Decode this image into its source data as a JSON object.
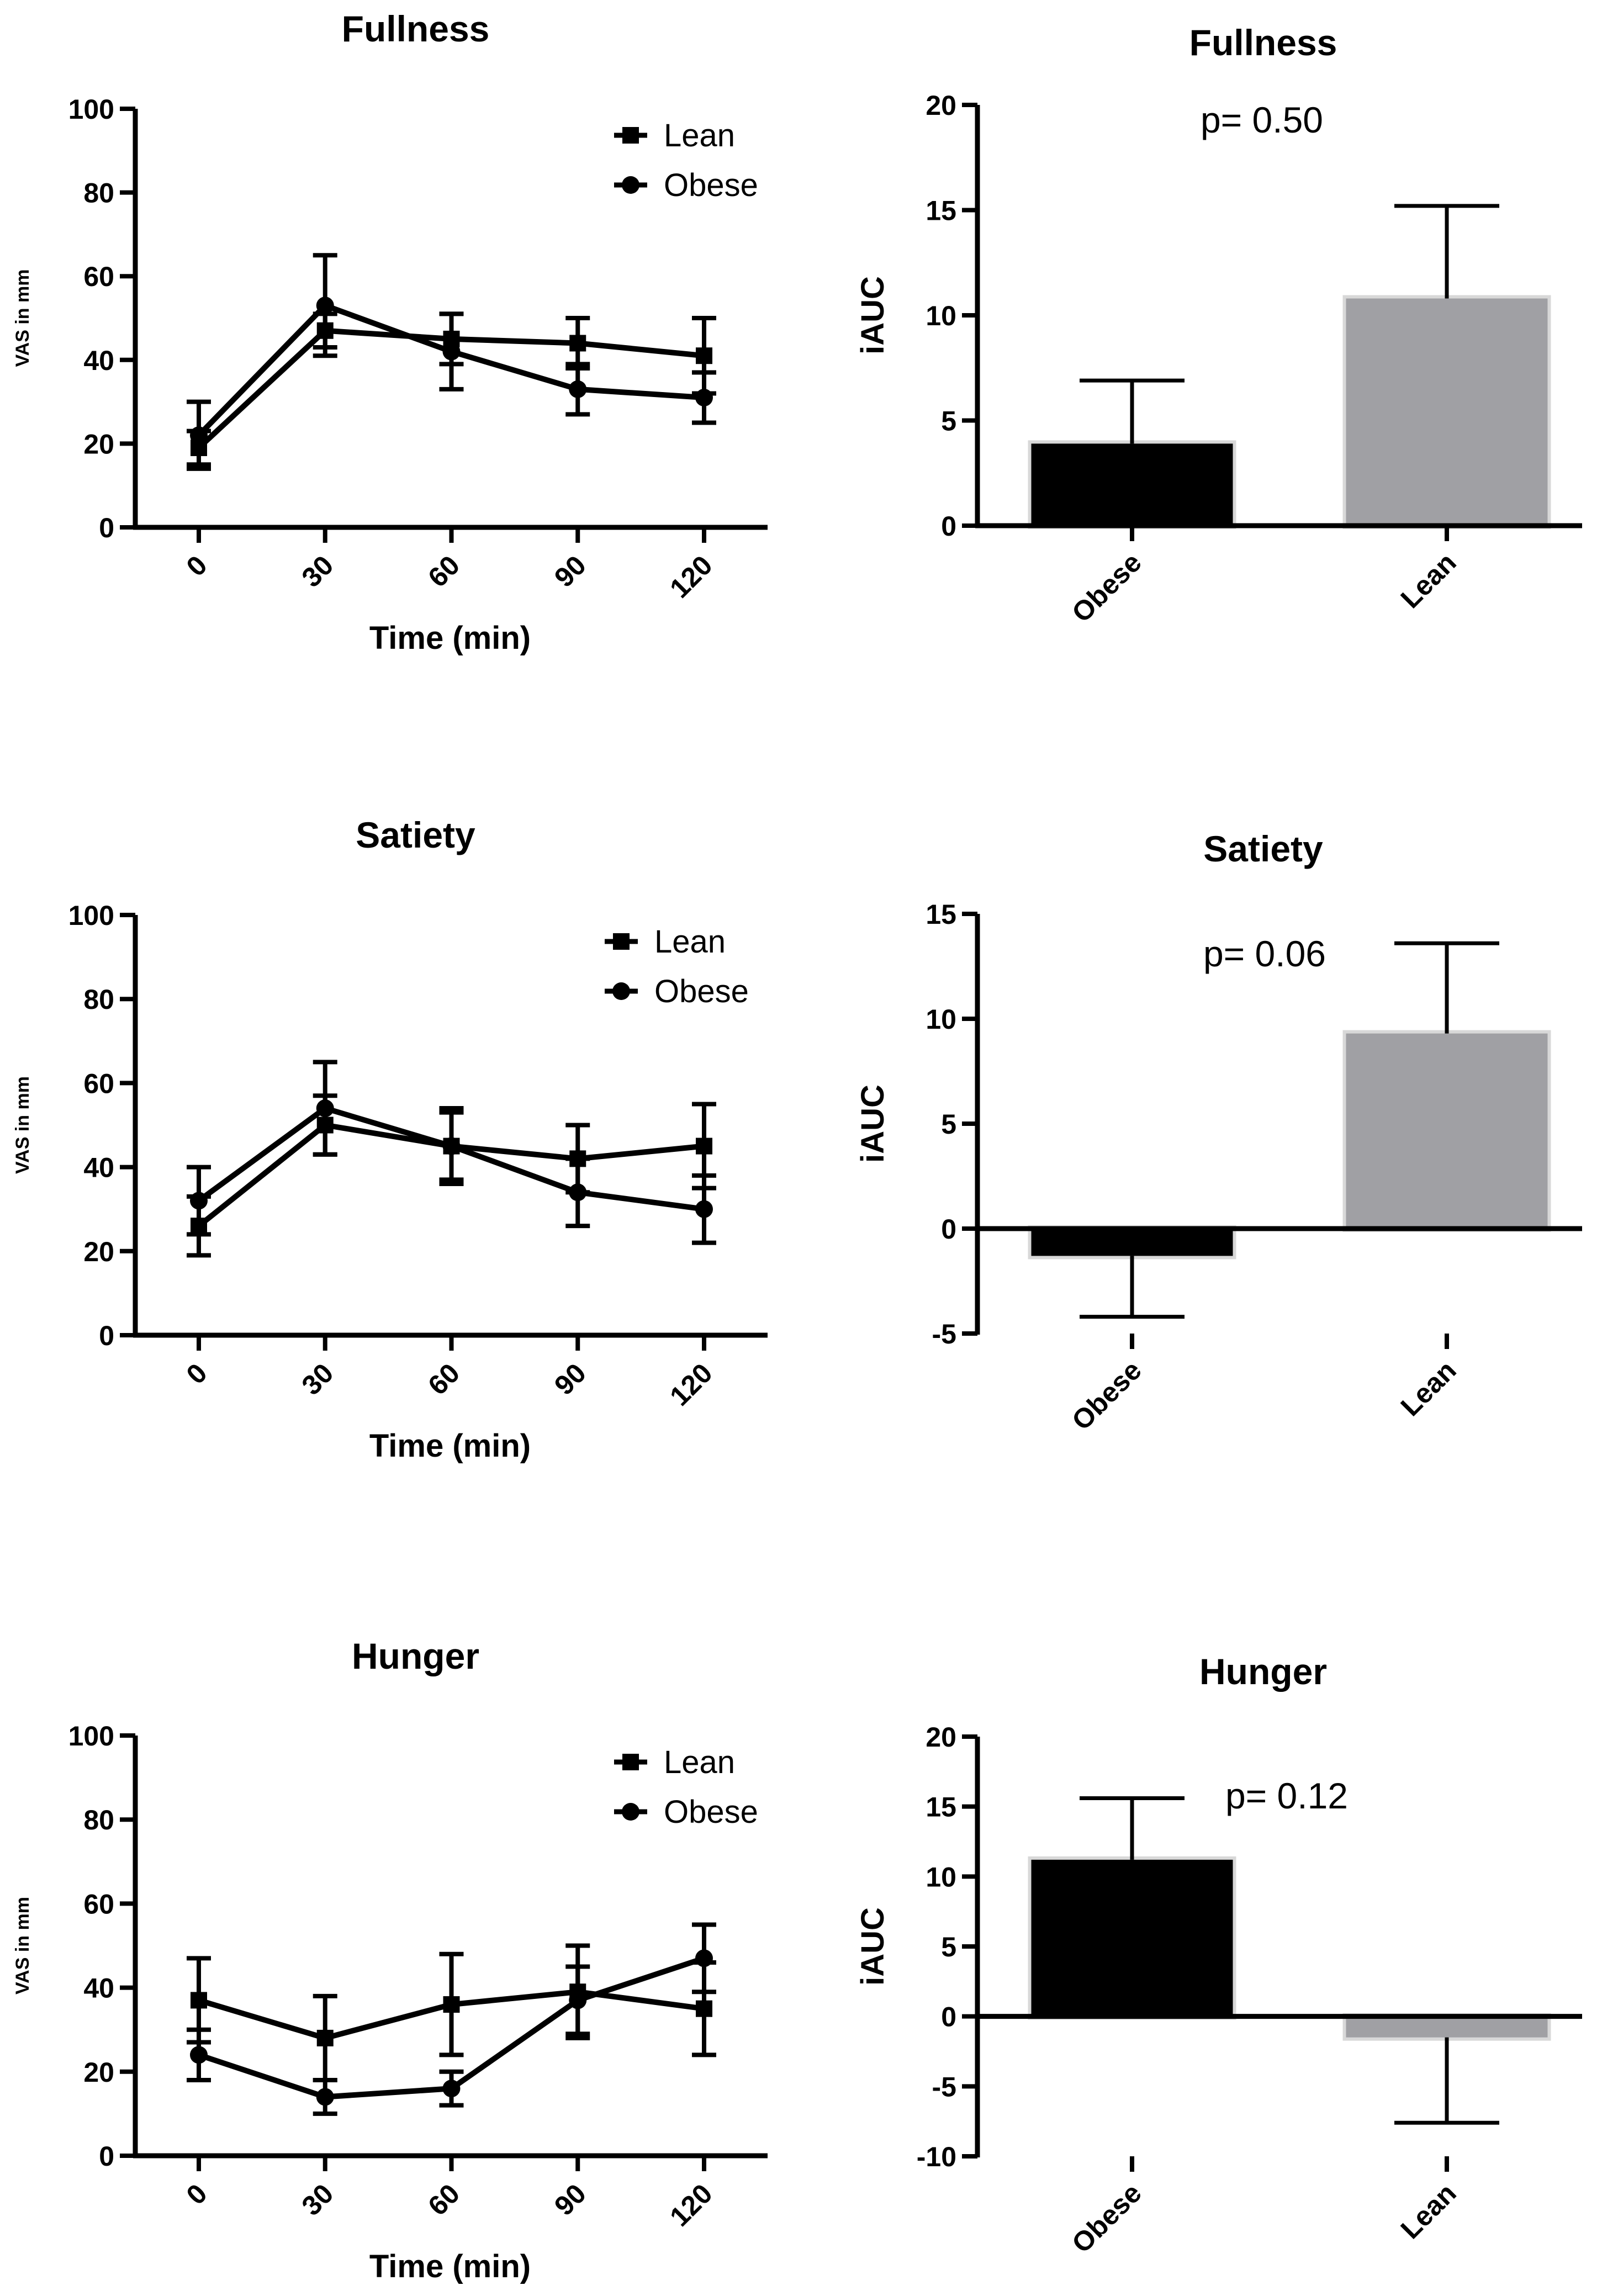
{
  "chart_data": [
    {
      "id": "fullness-line",
      "type": "line",
      "title": "Fullness",
      "xlabel": "Time (min)",
      "ylabel": "VAS in mm",
      "x": [
        0,
        30,
        60,
        90,
        120
      ],
      "x_ticklabels": [
        "0",
        "30",
        "60",
        "90",
        "120"
      ],
      "ylim": [
        0,
        100
      ],
      "yticks": [
        0,
        20,
        40,
        60,
        80,
        100
      ],
      "ytick_labels": [
        "0",
        "20",
        "40",
        "60",
        "80",
        "100"
      ],
      "legend_position": "top-right",
      "series": [
        {
          "name": "Lean",
          "marker": "square",
          "values": [
            19,
            47,
            45,
            44,
            41
          ],
          "err": [
            4,
            4,
            6,
            6,
            9
          ]
        },
        {
          "name": "Obese",
          "marker": "circle",
          "values": [
            22,
            53,
            42,
            33,
            31
          ],
          "err": [
            8,
            12,
            9,
            6,
            6
          ]
        }
      ]
    },
    {
      "id": "fullness-bar",
      "type": "bar",
      "title": "Fullness",
      "ylabel": "iAUC",
      "annotation": "p= 0.50",
      "categories": [
        "Obese",
        "Lean"
      ],
      "values": [
        3.9,
        10.8
      ],
      "err": [
        3.0,
        4.4
      ],
      "bar_colors": [
        "#000000",
        "#a0a0a4"
      ],
      "ylim": [
        0,
        20
      ],
      "yticks": [
        0,
        5,
        10,
        15,
        20
      ],
      "ytick_labels": [
        "0",
        "5",
        "10",
        "15",
        "20"
      ]
    },
    {
      "id": "satiety-line",
      "type": "line",
      "title": "Satiety",
      "xlabel": "Time (min)",
      "ylabel": "VAS in mm",
      "x": [
        0,
        30,
        60,
        90,
        120
      ],
      "x_ticklabels": [
        "0",
        "30",
        "60",
        "90",
        "120"
      ],
      "ylim": [
        0,
        100
      ],
      "yticks": [
        0,
        20,
        40,
        60,
        80,
        100
      ],
      "ytick_labels": [
        "0",
        "20",
        "40",
        "60",
        "80",
        "100"
      ],
      "legend_position": "top-right",
      "series": [
        {
          "name": "Lean",
          "marker": "square",
          "values": [
            26,
            50,
            45,
            42,
            45
          ],
          "err": [
            7,
            7,
            9,
            8,
            10
          ]
        },
        {
          "name": "Obese",
          "marker": "circle",
          "values": [
            32,
            54,
            45,
            34,
            30
          ],
          "err": [
            8,
            11,
            8,
            8,
            8
          ]
        }
      ]
    },
    {
      "id": "satiety-bar",
      "type": "bar",
      "title": "Satiety",
      "ylabel": "iAUC",
      "annotation": "p= 0.06",
      "categories": [
        "Obese",
        "Lean"
      ],
      "values": [
        -1.3,
        9.3
      ],
      "err": [
        2.9,
        4.3
      ],
      "bar_colors": [
        "#000000",
        "#a0a0a4"
      ],
      "ylim": [
        -5,
        15
      ],
      "yticks": [
        -5,
        0,
        5,
        10,
        15
      ],
      "ytick_labels": [
        "-5",
        "0",
        "5",
        "10",
        "15"
      ]
    },
    {
      "id": "hunger-line",
      "type": "line",
      "title": "Hunger",
      "xlabel": "Time (min)",
      "ylabel": "VAS in mm",
      "x": [
        0,
        30,
        60,
        90,
        120
      ],
      "x_ticklabels": [
        "0",
        "30",
        "60",
        "90",
        "120"
      ],
      "ylim": [
        0,
        100
      ],
      "yticks": [
        0,
        20,
        40,
        60,
        80,
        100
      ],
      "ytick_labels": [
        "0",
        "20",
        "40",
        "60",
        "80",
        "100"
      ],
      "legend_position": "top-right",
      "series": [
        {
          "name": "Lean",
          "marker": "square",
          "values": [
            37,
            28,
            36,
            39,
            35
          ],
          "err": [
            10,
            10,
            12,
            11,
            11
          ]
        },
        {
          "name": "Obese",
          "marker": "circle",
          "values": [
            24,
            14,
            16,
            37,
            47
          ],
          "err": [
            6,
            4,
            4,
            8,
            8
          ]
        }
      ]
    },
    {
      "id": "hunger-bar",
      "type": "bar",
      "title": "Hunger",
      "ylabel": "iAUC",
      "annotation": "p= 0.12",
      "categories": [
        "Obese",
        "Lean"
      ],
      "values": [
        11.2,
        -1.5
      ],
      "err": [
        4.4,
        6.1
      ],
      "bar_colors": [
        "#000000",
        "#a0a0a4"
      ],
      "ylim": [
        -10,
        20
      ],
      "yticks": [
        -10,
        -5,
        0,
        5,
        10,
        15,
        20
      ],
      "ytick_labels": [
        "-10",
        "-5",
        "0",
        "5",
        "10",
        "15",
        "20"
      ]
    }
  ]
}
